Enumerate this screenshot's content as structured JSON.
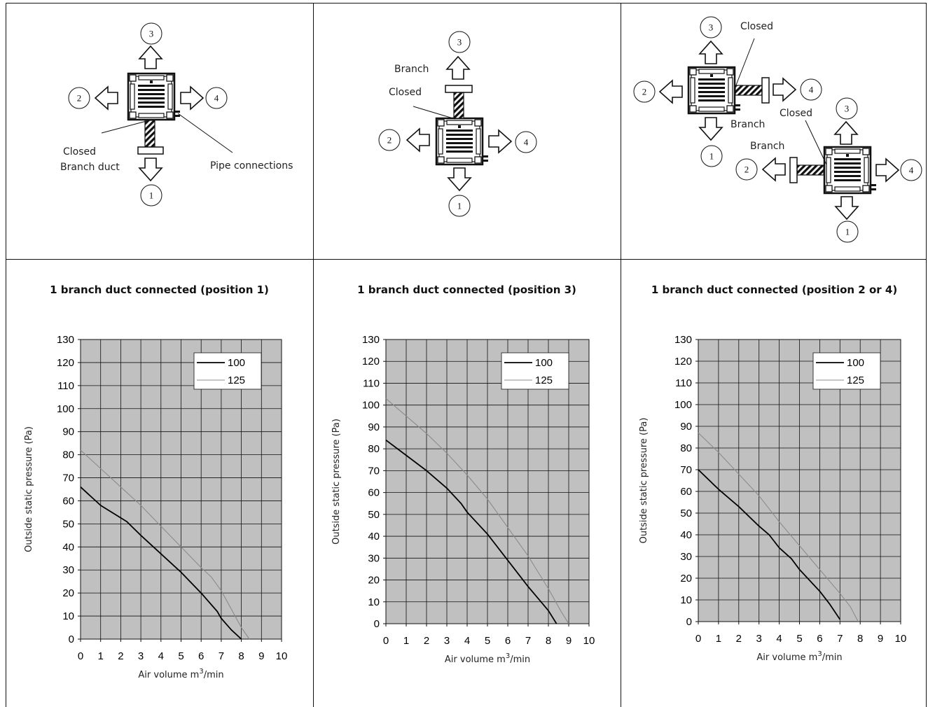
{
  "diagrams": [
    {
      "arrows": [
        "1",
        "2",
        "3",
        "4"
      ],
      "labels": {
        "closed": "Closed",
        "branch_duct": "Branch duct",
        "pipe": "Pipe connections"
      }
    },
    {
      "arrows": [
        "1",
        "2",
        "3",
        "4"
      ],
      "labels": {
        "branch": "Branch",
        "closed": "Closed"
      }
    },
    {
      "unit_a": {
        "arrows": [
          "1",
          "2",
          "3",
          "4"
        ],
        "closed": "Closed",
        "branch": "Branch"
      },
      "unit_b": {
        "arrows": [
          "1",
          "2",
          "3",
          "4"
        ],
        "closed": "Closed",
        "branch": "Branch"
      }
    }
  ],
  "chart_data": [
    {
      "type": "line",
      "title": "1 branch duct connected (position 1)",
      "xlabel": "Air volume m³/min",
      "ylabel": "Outside static pressure (Pa)",
      "xlim": [
        0,
        10
      ],
      "ylim": [
        0,
        130
      ],
      "xticks": [
        "0",
        "1",
        "2",
        "3",
        "4",
        "5",
        "6",
        "7",
        "8",
        "9",
        "10"
      ],
      "yticks": [
        "0",
        "10",
        "20",
        "30",
        "40",
        "50",
        "60",
        "70",
        "80",
        "90",
        "100",
        "110",
        "120",
        "130"
      ],
      "grid": true,
      "legend_position": "top-right",
      "series": [
        {
          "name": "100",
          "color": "#000000",
          "points": [
            [
              0,
              66
            ],
            [
              1,
              58
            ],
            [
              2.3,
              51
            ],
            [
              3,
              45
            ],
            [
              4,
              37
            ],
            [
              5,
              29
            ],
            [
              6,
              20
            ],
            [
              6.8,
              12
            ],
            [
              7,
              9
            ],
            [
              7.5,
              4
            ],
            [
              8,
              0
            ]
          ]
        },
        {
          "name": "125",
          "color": "#8c8c8c",
          "points": [
            [
              0,
              82
            ],
            [
              1,
              74
            ],
            [
              2,
              66
            ],
            [
              3,
              58
            ],
            [
              4,
              49
            ],
            [
              5,
              40
            ],
            [
              6,
              31
            ],
            [
              6.5,
              27
            ],
            [
              7,
              21
            ],
            [
              7.5,
              13
            ],
            [
              8,
              5
            ],
            [
              8.4,
              0
            ]
          ]
        }
      ]
    },
    {
      "type": "line",
      "title": "1 branch duct connected (position 3)",
      "xlabel": "Air volume m³/min",
      "ylabel": "Outside static pressure (Pa)",
      "xlim": [
        0,
        10
      ],
      "ylim": [
        0,
        130
      ],
      "xticks": [
        "0",
        "1",
        "2",
        "3",
        "4",
        "5",
        "6",
        "7",
        "8",
        "9",
        "10"
      ],
      "yticks": [
        "0",
        "10",
        "20",
        "30",
        "40",
        "50",
        "60",
        "70",
        "80",
        "90",
        "100",
        "110",
        "120",
        "130"
      ],
      "grid": true,
      "legend_position": "top-right",
      "series": [
        {
          "name": "100",
          "color": "#000000",
          "points": [
            [
              0,
              84
            ],
            [
              1,
              77
            ],
            [
              2,
              70
            ],
            [
              3,
              62
            ],
            [
              3.7,
              55
            ],
            [
              4,
              51
            ],
            [
              5,
              41
            ],
            [
              6,
              29
            ],
            [
              7,
              17
            ],
            [
              8,
              6
            ],
            [
              8.4,
              0
            ]
          ]
        },
        {
          "name": "125",
          "color": "#8c8c8c",
          "points": [
            [
              0,
              103
            ],
            [
              1,
              95
            ],
            [
              2,
              87
            ],
            [
              3,
              78
            ],
            [
              4,
              68
            ],
            [
              5,
              57
            ],
            [
              6,
              44
            ],
            [
              7,
              31
            ],
            [
              8,
              16
            ],
            [
              8.6,
              6
            ],
            [
              9,
              0
            ]
          ]
        }
      ]
    },
    {
      "type": "line",
      "title": "1 branch duct connected (position 2 or 4)",
      "xlabel": "Air volume m³/min",
      "ylabel": "Outside static pressure (Pa)",
      "xlim": [
        0,
        10
      ],
      "ylim": [
        0,
        130
      ],
      "xticks": [
        "0",
        "1",
        "2",
        "3",
        "4",
        "5",
        "6",
        "7",
        "8",
        "9",
        "10"
      ],
      "yticks": [
        "0",
        "10",
        "20",
        "30",
        "40",
        "50",
        "60",
        "70",
        "80",
        "90",
        "100",
        "110",
        "120",
        "130"
      ],
      "grid": true,
      "legend_position": "top-right",
      "series": [
        {
          "name": "100",
          "color": "#000000",
          "points": [
            [
              0,
              70
            ],
            [
              1,
              61
            ],
            [
              2,
              53
            ],
            [
              3,
              44
            ],
            [
              3.5,
              40
            ],
            [
              4,
              34
            ],
            [
              4.6,
              29
            ],
            [
              5,
              24
            ],
            [
              6,
              14
            ],
            [
              6.5,
              8
            ],
            [
              7,
              1
            ]
          ]
        },
        {
          "name": "125",
          "color": "#8c8c8c",
          "points": [
            [
              0,
              87
            ],
            [
              1,
              78
            ],
            [
              2,
              68
            ],
            [
              3,
              58
            ],
            [
              4,
              46
            ],
            [
              5,
              35
            ],
            [
              6,
              24
            ],
            [
              7,
              13
            ],
            [
              7.5,
              7
            ],
            [
              7.9,
              0
            ]
          ]
        }
      ]
    }
  ]
}
